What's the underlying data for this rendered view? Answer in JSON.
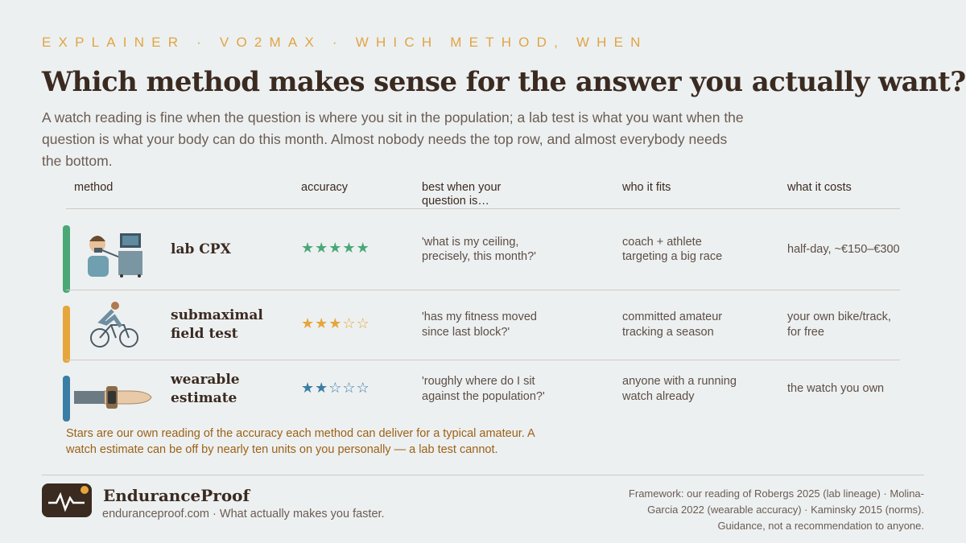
{
  "header": {
    "eyebrow": "EXPLAINER · VO2MAX · WHICH METHOD, WHEN",
    "title": "Which method makes sense for the answer you actually want?",
    "subtitle": "A watch reading is fine when the question is where you sit in the population; a lab test is what you want when the question is what your body can do this month. Almost nobody needs the top row, and almost everybody needs the bottom."
  },
  "table": {
    "columns": [
      "method",
      "accuracy",
      "best when your question is…",
      "who it fits",
      "what it costs"
    ],
    "star_max": 5,
    "rows": [
      {
        "method": "lab CPX",
        "rating": 5,
        "color": "#4aa877",
        "question": "'what is my ceiling, precisely, this month?'",
        "fits": "coach + athlete targeting a big race",
        "cost": "half-day, ~€150–€300"
      },
      {
        "method": "submaximal field test",
        "rating": 3,
        "color": "#e6a63c",
        "question": "'has my fitness moved since last block?'",
        "fits": "committed amateur tracking a season",
        "cost": "your own bike/track, for free"
      },
      {
        "method": "wearable estimate",
        "rating": 2,
        "color": "#3a7ea6",
        "question": "'roughly where do I sit against the population?'",
        "fits": "anyone with a running watch already",
        "cost": "the watch you own"
      }
    ],
    "note": "Stars are our own reading of the accuracy each method can deliver for a typical amateur. A watch estimate can be off by nearly ten units on you personally — a lab test cannot."
  },
  "footer": {
    "brand": "EnduranceProof",
    "tagline": "enduranceproof.com · What actually makes you faster.",
    "sources": "Framework: our reading of Robergs 2025 (lab lineage) · Molina-Garcia 2022 (wearable accuracy) · Kaminsky 2015 (norms). Guidance, not a recommendation to anyone."
  }
}
